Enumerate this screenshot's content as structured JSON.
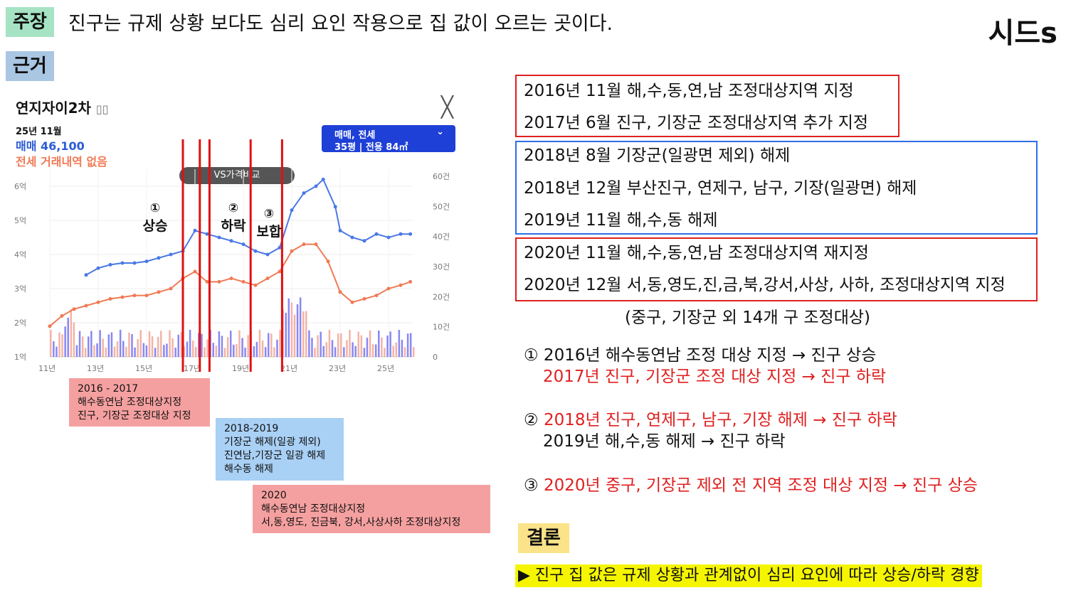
{
  "header": {
    "claim_tag": "주장",
    "claim_text": "진구는 규제 상황 보다도 심리 요인 작용으로 집 값이 오르는 곳이다.",
    "brand": "시드s",
    "evidence_tag": "근거"
  },
  "chart_card": {
    "apt_name": "연지자이2차",
    "date": "25년 11월",
    "sale_price": "매매 46,100",
    "jeonse_note": "전세 거래내역 없음",
    "filter_line1": "매매, 전세",
    "filter_line2": "35평 | 전용 84㎡",
    "vs_pill": "VS가격비교",
    "markers": [
      {
        "num": "①",
        "label": "상승"
      },
      {
        "num": "②",
        "label": "하락"
      },
      {
        "num": "③",
        "label": "보합"
      }
    ]
  },
  "chart_data": {
    "type": "line",
    "x": [
      "11년",
      "13년",
      "15년",
      "17년",
      "19년",
      "21년",
      "23년",
      "25년"
    ],
    "y_left_ticks": [
      "1억",
      "2억",
      "3억",
      "4억",
      "5억",
      "6억"
    ],
    "y_right_ticks": [
      "0",
      "10건",
      "20건",
      "30건",
      "40건",
      "50건",
      "60건"
    ],
    "ylim_left": [
      1,
      6.5
    ],
    "ylim_right": [
      0,
      60
    ],
    "series": [
      {
        "name": "매매",
        "color": "#4a78e6",
        "points": [
          [
            2012.5,
            3.4
          ],
          [
            2013,
            3.6
          ],
          [
            2013.5,
            3.7
          ],
          [
            2014,
            3.75
          ],
          [
            2014.5,
            3.75
          ],
          [
            2015,
            3.8
          ],
          [
            2015.5,
            3.9
          ],
          [
            2016,
            4.0
          ],
          [
            2016.5,
            4.1
          ],
          [
            2017,
            4.7
          ],
          [
            2017.5,
            4.6
          ],
          [
            2018,
            4.5
          ],
          [
            2018.5,
            4.4
          ],
          [
            2019,
            4.3
          ],
          [
            2019.5,
            4.1
          ],
          [
            2020,
            4.0
          ],
          [
            2020.5,
            4.2
          ],
          [
            2021,
            5.3
          ],
          [
            2021.5,
            5.8
          ],
          [
            2022,
            6.0
          ],
          [
            2022.3,
            6.2
          ],
          [
            2022.8,
            5.4
          ],
          [
            2023,
            4.7
          ],
          [
            2023.5,
            4.5
          ],
          [
            2024,
            4.4
          ],
          [
            2024.5,
            4.6
          ],
          [
            2025,
            4.5
          ],
          [
            2025.5,
            4.6
          ],
          [
            2025.9,
            4.6
          ]
        ]
      },
      {
        "name": "전세",
        "color": "#f07a55",
        "points": [
          [
            2011,
            1.9
          ],
          [
            2011.5,
            2.2
          ],
          [
            2012,
            2.4
          ],
          [
            2012.5,
            2.5
          ],
          [
            2013,
            2.6
          ],
          [
            2013.5,
            2.7
          ],
          [
            2014,
            2.75
          ],
          [
            2014.5,
            2.8
          ],
          [
            2015,
            2.8
          ],
          [
            2015.5,
            2.9
          ],
          [
            2016,
            3.0
          ],
          [
            2016.5,
            3.3
          ],
          [
            2017,
            3.5
          ],
          [
            2017.5,
            3.2
          ],
          [
            2018,
            3.2
          ],
          [
            2018.5,
            3.3
          ],
          [
            2019,
            3.2
          ],
          [
            2019.5,
            3.1
          ],
          [
            2020,
            3.3
          ],
          [
            2020.5,
            3.5
          ],
          [
            2021,
            4.1
          ],
          [
            2021.5,
            4.3
          ],
          [
            2022,
            4.3
          ],
          [
            2022.5,
            3.8
          ],
          [
            2023,
            2.9
          ],
          [
            2023.5,
            2.6
          ],
          [
            2024,
            2.7
          ],
          [
            2024.5,
            2.8
          ],
          [
            2025,
            3.0
          ],
          [
            2025.5,
            3.1
          ],
          [
            2025.9,
            3.2
          ]
        ]
      }
    ],
    "grid": true
  },
  "notes": {
    "note1": "2016 - 2017\n해수동연남 조정대상지정\n진구, 기장군 조정대상 지정",
    "note2": "2018-2019\n기장군 해제(일광 제외)\n진연남,기장군 일광 해제\n해수동 해제",
    "note3": "2020\n해수동연남 조정대상지정\n서,동,영도, 진금북, 강서,사상사하 조정대상지정"
  },
  "events": {
    "red1": [
      "2016년 11월 해,수,동,연,남 조정대상지역 지정",
      "2017년 6월 진구, 기장군 조정대상지역 추가 지정"
    ],
    "blue": [
      "2018년 8월 기장군(일광면 제외) 해제",
      "2018년 12월 부산진구, 연제구, 남구, 기장(일광면) 해제",
      "2019년 11월 해,수,동 해제"
    ],
    "red2": [
      "2020년 11월 해,수,동,연,남 조정대상지역 재지정",
      "2020년 12월 서,동,영도,진,금,북,강서,사상, 사하, 조정대상지역 지정"
    ],
    "footnote": "(중구, 기장군 외 14개 구 조정대상)"
  },
  "analysis": {
    "a1_line1": "① 2016년 해수동연남 조정 대상 지정 → 진구 상승",
    "a1_line2": "2017년 진구, 기장군 조정 대상 지정 → 진구 하락",
    "a2_num": "②",
    "a2_line1": "2018년 진구, 연제구, 남구, 기장 해제 → 진구 하락",
    "a2_line2": "2019년 해,수,동 해제 → 진구 하락",
    "a3_num": "③",
    "a3_line1": "2020년 중구, 기장군 제외 전 지역 조정 대상 지정 → 진구 상승"
  },
  "conclusion": {
    "tag": "결론",
    "text": "▶ 진구 집 값은 규제 상황과 관계없이 심리 요인에 따라 상승/하락 경향"
  }
}
